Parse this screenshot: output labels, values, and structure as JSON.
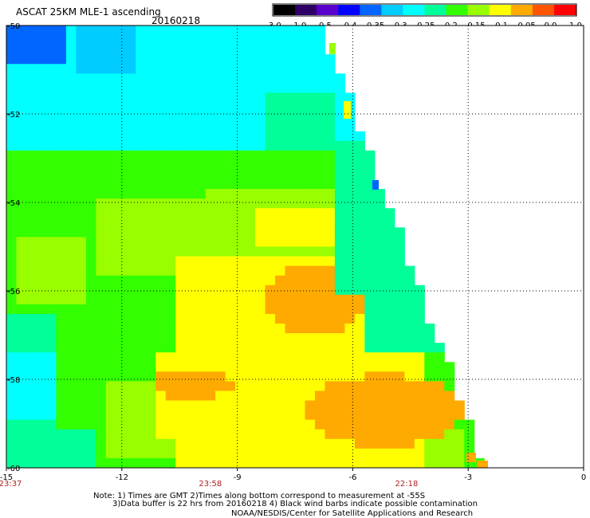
{
  "header": {
    "title": "ASCAT 25KM MLE-1 ascending",
    "date": "20160218"
  },
  "colorbar": {
    "labels": [
      "-3.0",
      "-1.0",
      "-0.5",
      "-0.4",
      "-0.35",
      "-0.3",
      "-0.25",
      "-0.2",
      "-0.15",
      "-0.1",
      "-0.05",
      "0.0",
      "1.0"
    ],
    "colors": [
      "#000000",
      "#2d0066",
      "#5a00cc",
      "#0000ff",
      "#0066ff",
      "#00ccff",
      "#00ffff",
      "#00ff99",
      "#33ff00",
      "#99ff00",
      "#ffff00",
      "#ffaa00",
      "#ff5500",
      "#ff0000"
    ]
  },
  "map": {
    "lon_range": [
      -15,
      0
    ],
    "lat_range": [
      -60,
      -50
    ],
    "x_ticks": [
      {
        "value": -15,
        "label": "-15"
      },
      {
        "value": -12,
        "label": "-12"
      },
      {
        "value": -9,
        "label": "-9"
      },
      {
        "value": -6,
        "label": "-6"
      },
      {
        "value": -3,
        "label": "-3"
      },
      {
        "value": 0,
        "label": "0"
      }
    ],
    "y_ticks": [
      {
        "value": -50,
        "label": "-50"
      },
      {
        "value": -52,
        "label": "-52"
      },
      {
        "value": -54,
        "label": "-54"
      },
      {
        "value": -56,
        "label": "-56"
      },
      {
        "value": -58,
        "label": "-58"
      },
      {
        "value": -60,
        "label": "-60"
      }
    ],
    "times": [
      {
        "lon": -15,
        "label": "23:37"
      },
      {
        "lon": -9.7,
        "label": "23:58"
      },
      {
        "lon": -4.6,
        "label": "22:18"
      }
    ],
    "colors": {
      "cyan": "#00ffff",
      "lightblue": "#00ccff",
      "blue": "#0066ff",
      "aqua": "#00ff99",
      "green": "#33ff00",
      "lime": "#99ff00",
      "yellow": "#ffff00",
      "orange": "#ffaa00"
    }
  },
  "notes": {
    "line1": "Note: 1) Times are GMT 2)Times along bottom correspond to measurement at -55S",
    "line2": "3)Data buffer is 22 hrs from 20160218 4) Black wind barbs indicate possible contamination",
    "line3": "NOAA/NESDIS/Center for Satellite Applications and Research"
  }
}
